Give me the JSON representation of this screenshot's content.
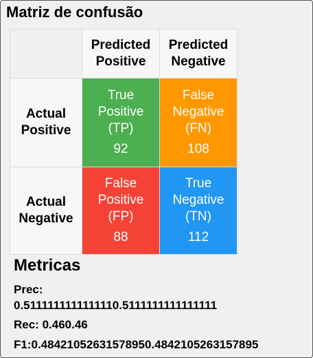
{
  "title": "Matriz de confusão",
  "matrix": {
    "col_headers": [
      "Predicted\nPositive",
      "Predicted\nNegative"
    ],
    "row_headers": [
      "Actual\nPositive",
      "Actual\nNegative"
    ],
    "cells": [
      {
        "label": "True\nPositive\n(TP)",
        "value": "92",
        "color": "#4caf50"
      },
      {
        "label": "False\nNegative\n(FN)",
        "value": "108",
        "color": "#ff9800"
      },
      {
        "label": "False\nPositive\n(FP)",
        "value": "88",
        "color": "#f44336"
      },
      {
        "label": "True\nNegative\n(TN)",
        "value": "112",
        "color": "#2196f3"
      }
    ]
  },
  "metrics": {
    "title": "Metricas",
    "prec_label": "Prec:",
    "prec_value": "0.5111111111111110.5111111111111111",
    "rec_text": "Rec: 0.460.46",
    "f1_text": "F1:0.48421052631578950.4842105263157895"
  }
}
